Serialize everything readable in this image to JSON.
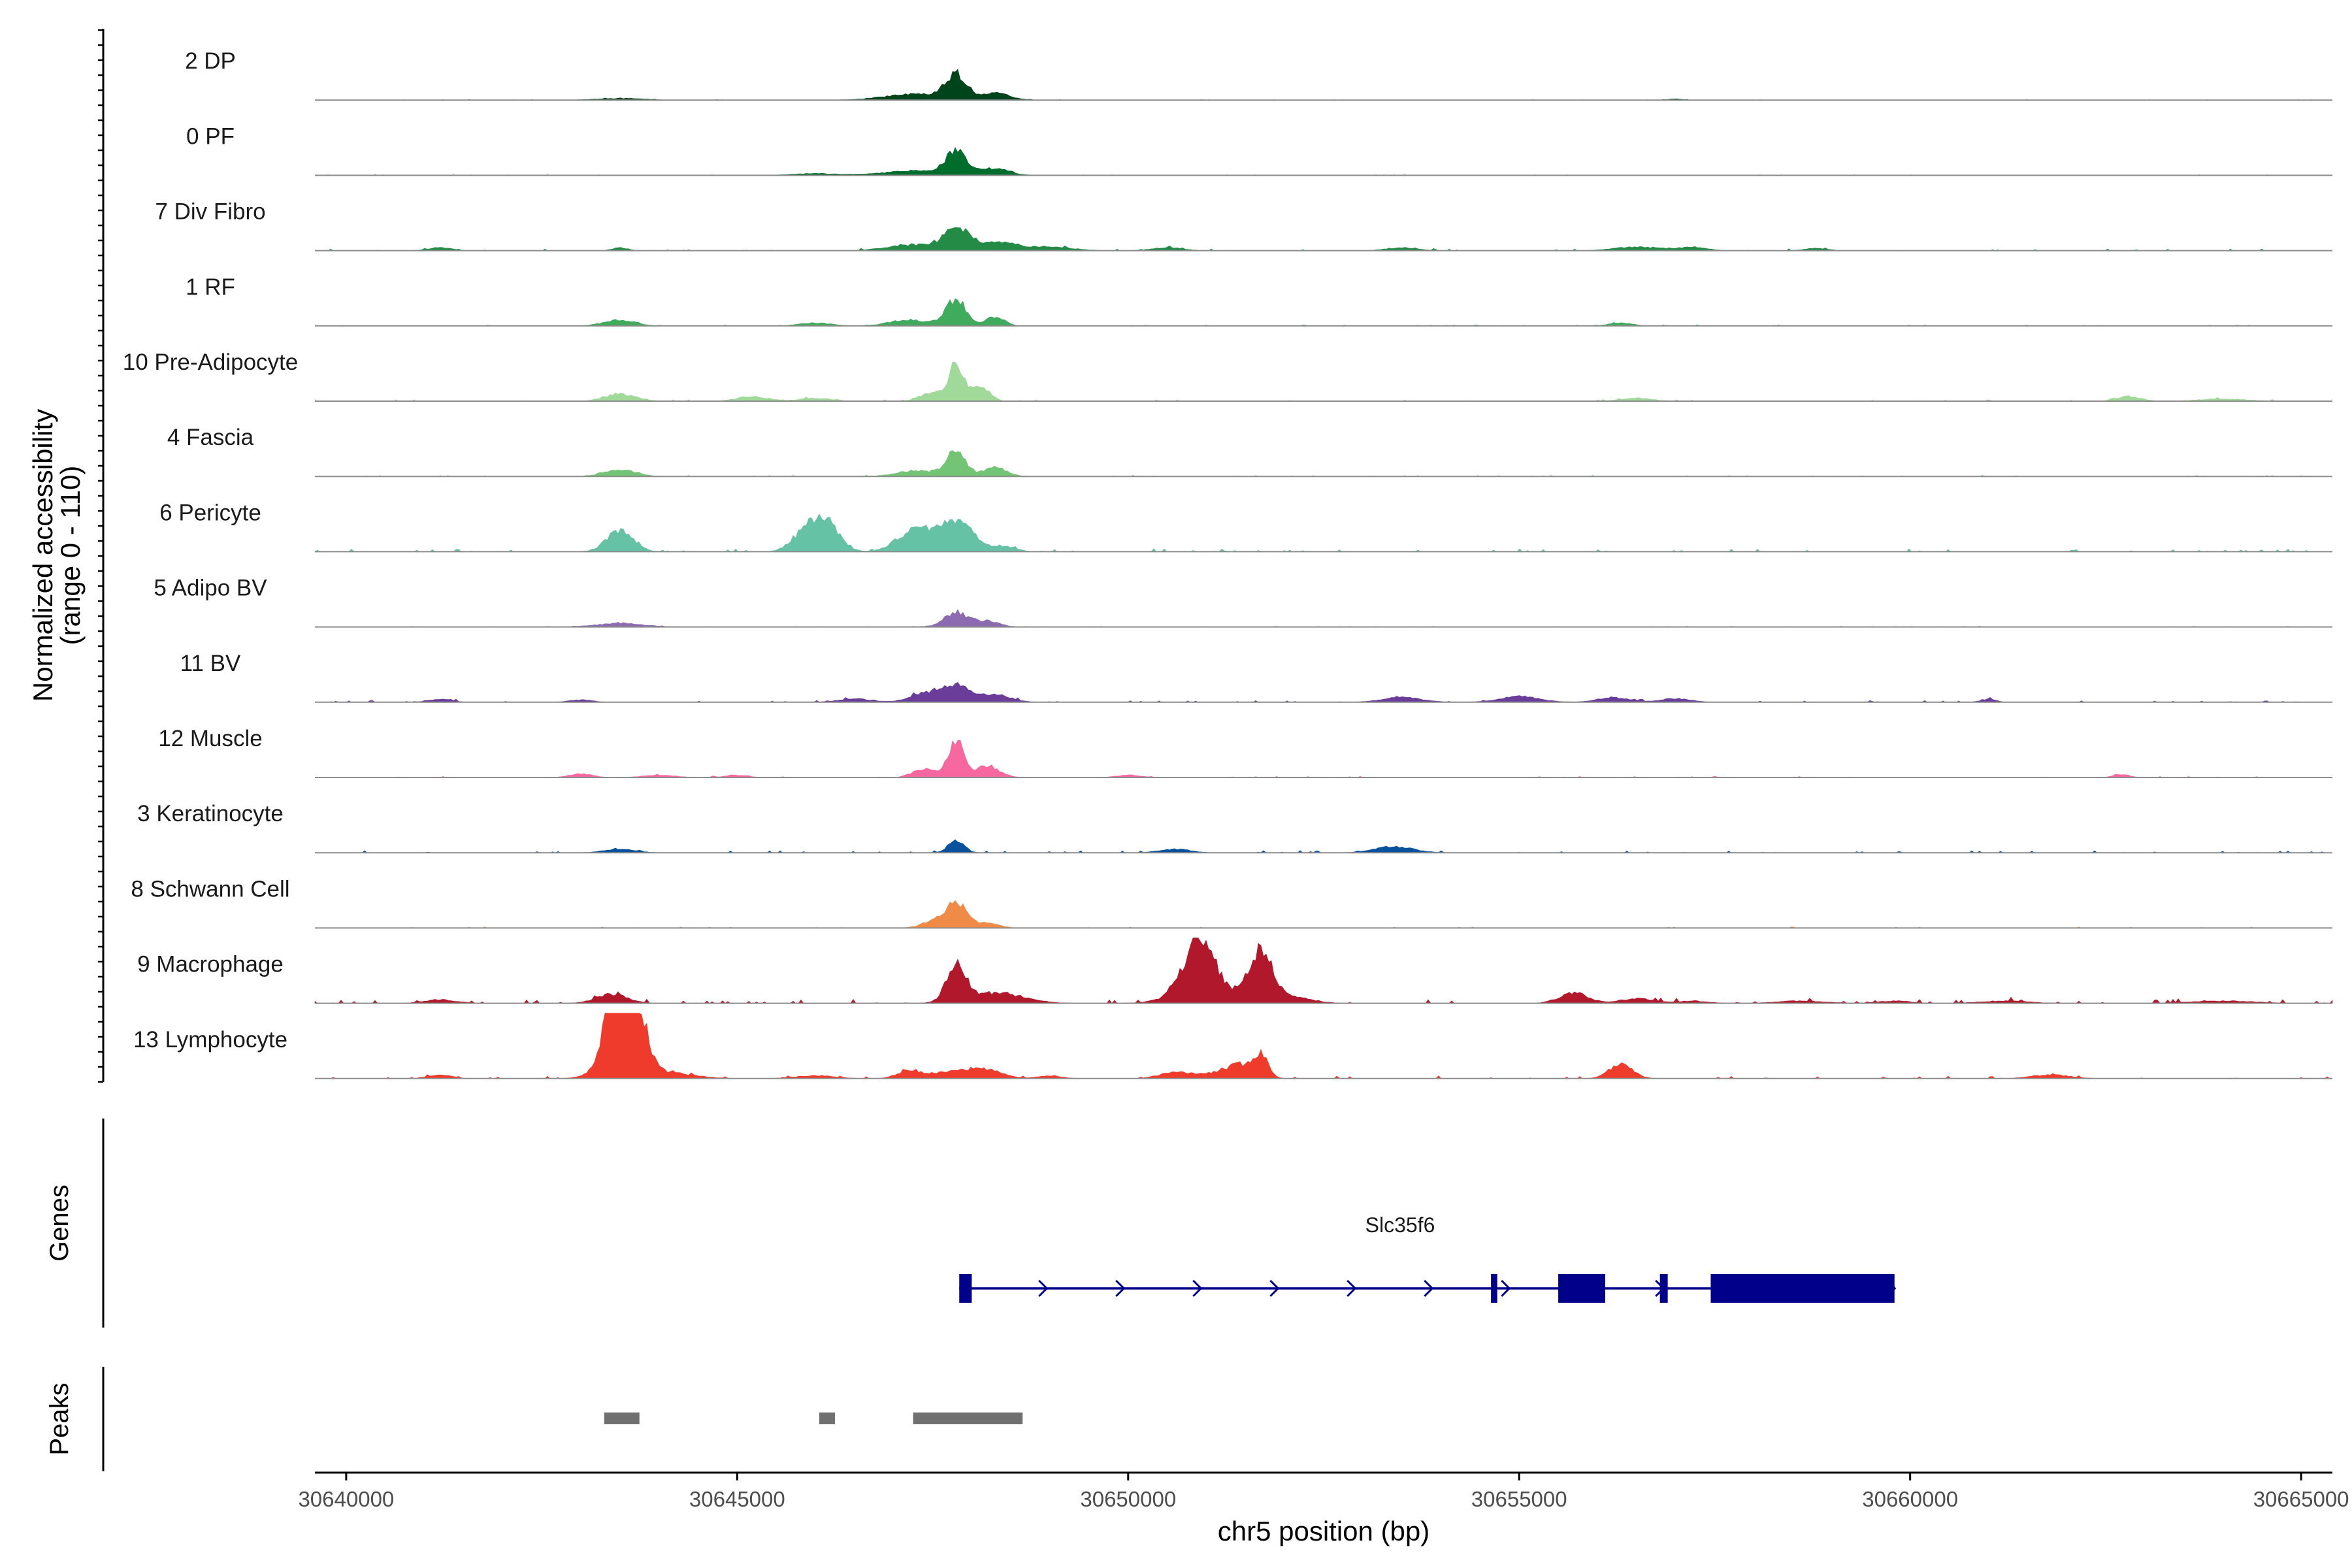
{
  "chart_data": {
    "type": "genome-browser",
    "chromosome": "chr5",
    "xlabel": "chr5 position (bp)",
    "xlim": [
      30639600,
      30665400
    ],
    "x_ticks": [
      30640000,
      30645000,
      30650000,
      30655000,
      30660000,
      30665000
    ],
    "x_tick_labels": [
      "30640000",
      "30645000",
      "30650000",
      "30655000",
      "30660000",
      "30665000"
    ],
    "accessibility": {
      "ylabel_line1": "Normalized accessibility",
      "ylabel_line2": "(range 0 - 110)",
      "yrange": [
        0,
        110
      ],
      "tracks": [
        {
          "label": "2 DP",
          "color": "#00441b",
          "peaks": [
            [
              30647800,
              40,
              130
            ],
            [
              30647300,
              10,
              400
            ],
            [
              30648300,
              12,
              180
            ],
            [
              30643500,
              3,
              300
            ],
            [
              30657000,
              2,
              80
            ]
          ],
          "noise": 0.15
        },
        {
          "label": "0 PF",
          "color": "#006d2c",
          "peaks": [
            [
              30647800,
              38,
              130
            ],
            [
              30647300,
              8,
              400
            ],
            [
              30648300,
              12,
              180
            ],
            [
              30646000,
              3,
              300
            ]
          ],
          "noise": 0.2
        },
        {
          "label": "7 Div Fibro",
          "color": "#238b45",
          "peaks": [
            [
              30647800,
              35,
              150
            ],
            [
              30647300,
              10,
              350
            ],
            [
              30648300,
              15,
              250
            ],
            [
              30641200,
              5,
              150
            ],
            [
              30643500,
              5,
              100
            ],
            [
              30649000,
              6,
              300
            ],
            [
              30650500,
              5,
              200
            ],
            [
              30653500,
              5,
              200
            ],
            [
              30656500,
              6,
              300
            ],
            [
              30657200,
              5,
              200
            ],
            [
              30658800,
              4,
              150
            ]
          ],
          "noise": 0.5
        },
        {
          "label": "1 RF",
          "color": "#41ab5d",
          "peaks": [
            [
              30647800,
              45,
              130
            ],
            [
              30647200,
              10,
              250
            ],
            [
              30648300,
              15,
              120
            ],
            [
              30643500,
              10,
              200
            ],
            [
              30646000,
              5,
              200
            ],
            [
              30656300,
              5,
              150
            ]
          ],
          "noise": 0.3
        },
        {
          "label": "10 Pre-Adipocyte",
          "color": "#a1d99b",
          "peaks": [
            [
              30647800,
              60,
              90
            ],
            [
              30647500,
              15,
              150
            ],
            [
              30648100,
              25,
              120
            ],
            [
              30643500,
              12,
              200
            ],
            [
              30645200,
              8,
              200
            ],
            [
              30646000,
              5,
              200
            ],
            [
              30656500,
              5,
              200
            ],
            [
              30662800,
              8,
              150
            ],
            [
              30664000,
              4,
              300
            ]
          ],
          "noise": 0.4
        },
        {
          "label": "4 Fascia",
          "color": "#74c476",
          "peaks": [
            [
              30647800,
              45,
              120
            ],
            [
              30647300,
              10,
              250
            ],
            [
              30648300,
              15,
              150
            ],
            [
              30643500,
              12,
              200
            ]
          ],
          "noise": 0.3
        },
        {
          "label": "6 Pericyte",
          "color": "#66c2a4",
          "peaks": [
            [
              30643500,
              35,
              170
            ],
            [
              30646100,
              60,
              180
            ],
            [
              30645800,
              20,
              150
            ],
            [
              30647600,
              35,
              250
            ],
            [
              30647200,
              25,
              200
            ],
            [
              30647900,
              40,
              150
            ],
            [
              30648400,
              10,
              150
            ]
          ],
          "noise": 0.8
        },
        {
          "label": "5 Adipo BV",
          "color": "#8c6bb1",
          "peaks": [
            [
              30647800,
              25,
              150
            ],
            [
              30648200,
              10,
              150
            ],
            [
              30643500,
              6,
              300
            ]
          ],
          "noise": 0.2
        },
        {
          "label": "11 BV",
          "color": "#6a3d9a",
          "peaks": [
            [
              30647800,
              28,
              180
            ],
            [
              30647400,
              15,
              200
            ],
            [
              30648300,
              12,
              200
            ],
            [
              30653500,
              8,
              250
            ],
            [
              30655000,
              10,
              250
            ],
            [
              30656200,
              8,
              200
            ],
            [
              30657000,
              6,
              200
            ],
            [
              30661000,
              5,
              100
            ],
            [
              30641200,
              5,
              150
            ],
            [
              30643000,
              4,
              150
            ],
            [
              30646500,
              6,
              200
            ]
          ],
          "noise": 0.5
        },
        {
          "label": "12 Muscle",
          "color": "#f768a1",
          "peaks": [
            [
              30647800,
              60,
              100
            ],
            [
              30647400,
              15,
              150
            ],
            [
              30648200,
              20,
              150
            ],
            [
              30643000,
              6,
              150
            ],
            [
              30644000,
              4,
              200
            ],
            [
              30645000,
              4,
              150
            ],
            [
              30650000,
              4,
              150
            ],
            [
              30662700,
              5,
              100
            ]
          ],
          "noise": 0.3
        },
        {
          "label": "3 Keratinocyte",
          "color": "#08519c",
          "peaks": [
            [
              30647800,
              22,
              100
            ],
            [
              30653400,
              10,
              250
            ],
            [
              30650600,
              6,
              200
            ],
            [
              30643500,
              6,
              200
            ]
          ],
          "noise": 0.6
        },
        {
          "label": "8 Schwann Cell",
          "color": "#ef8a47",
          "peaks": [
            [
              30647800,
              45,
              130
            ],
            [
              30647500,
              10,
              150
            ],
            [
              30648200,
              8,
              150
            ]
          ],
          "noise": 0.3
        },
        {
          "label": "9 Macrophage",
          "color": "#b2182b",
          "peaks": [
            [
              30647800,
              60,
              120
            ],
            [
              30648300,
              18,
              350
            ],
            [
              30650900,
              85,
              180
            ],
            [
              30651700,
              90,
              140
            ],
            [
              30651000,
              30,
              350
            ],
            [
              30652100,
              10,
              250
            ],
            [
              30643400,
              15,
              200
            ],
            [
              30655700,
              18,
              180
            ],
            [
              30656500,
              8,
              200
            ],
            [
              30641200,
              6,
              200
            ],
            [
              30657200,
              4,
              200
            ],
            [
              30658600,
              4,
              300
            ],
            [
              30659800,
              4,
              200
            ],
            [
              30661200,
              4,
              300
            ],
            [
              30664000,
              4,
              400
            ]
          ],
          "noise": 1.0
        },
        {
          "label": "13 Lymphocyte",
          "color": "#ef3b2c",
          "peaks": [
            [
              30643400,
              100,
              110
            ],
            [
              30643700,
              100,
              120
            ],
            [
              30643550,
              55,
              250
            ],
            [
              30644200,
              8,
              300
            ],
            [
              30651700,
              40,
              90
            ],
            [
              30651450,
              18,
              150
            ],
            [
              30656300,
              25,
              150
            ],
            [
              30647200,
              12,
              150
            ],
            [
              30647800,
              12,
              300
            ],
            [
              30648200,
              12,
              200
            ],
            [
              30650600,
              10,
              200
            ],
            [
              30651200,
              10,
              250
            ],
            [
              30641200,
              6,
              150
            ],
            [
              30646000,
              5,
              250
            ],
            [
              30649000,
              5,
              150
            ],
            [
              30661800,
              6,
              250
            ]
          ],
          "noise": 0.7
        }
      ]
    },
    "genes": {
      "panel_title": "Genes",
      "gene_name": "Slc35f6",
      "strand": "+",
      "start": 30647840,
      "end": 30659800,
      "exons": [
        [
          30647840,
          30648000,
          "tall"
        ],
        [
          30654640,
          30654720,
          "tall"
        ],
        [
          30655500,
          30656100,
          "tall"
        ],
        [
          30656800,
          30656900,
          "tall"
        ],
        [
          30657450,
          30659800,
          "tall"
        ]
      ]
    },
    "peaks": {
      "panel_title": "Peaks",
      "regions": [
        [
          30643300,
          30643750
        ],
        [
          30646050,
          30646250
        ],
        [
          30647250,
          30648650
        ]
      ]
    }
  }
}
